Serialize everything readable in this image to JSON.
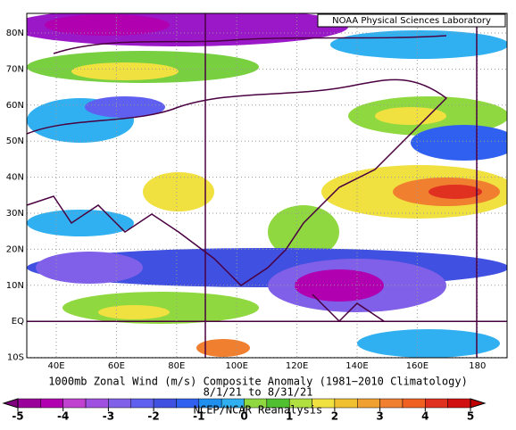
{
  "map": {
    "badge": "NOAA Physical Sciences Laboratory",
    "lat_labels": [
      "80N",
      "70N",
      "60N",
      "50N",
      "40N",
      "30N",
      "20N",
      "10N",
      "EQ",
      "10S"
    ],
    "lon_labels": [
      "40E",
      "60E",
      "80E",
      "100E",
      "120E",
      "140E",
      "160E",
      "180"
    ],
    "title": "1000mb Zonal Wind (m/s) Composite Anomaly (1981−2010 Climatology)",
    "period": "8/1/21  to 8/31/21",
    "source": "NCEP/NCAR Reanalysis",
    "colorbar": {
      "ticks": [
        -5,
        -4,
        -3,
        -2,
        -1,
        0,
        1,
        2,
        3,
        4,
        5
      ]
    }
  }
}
